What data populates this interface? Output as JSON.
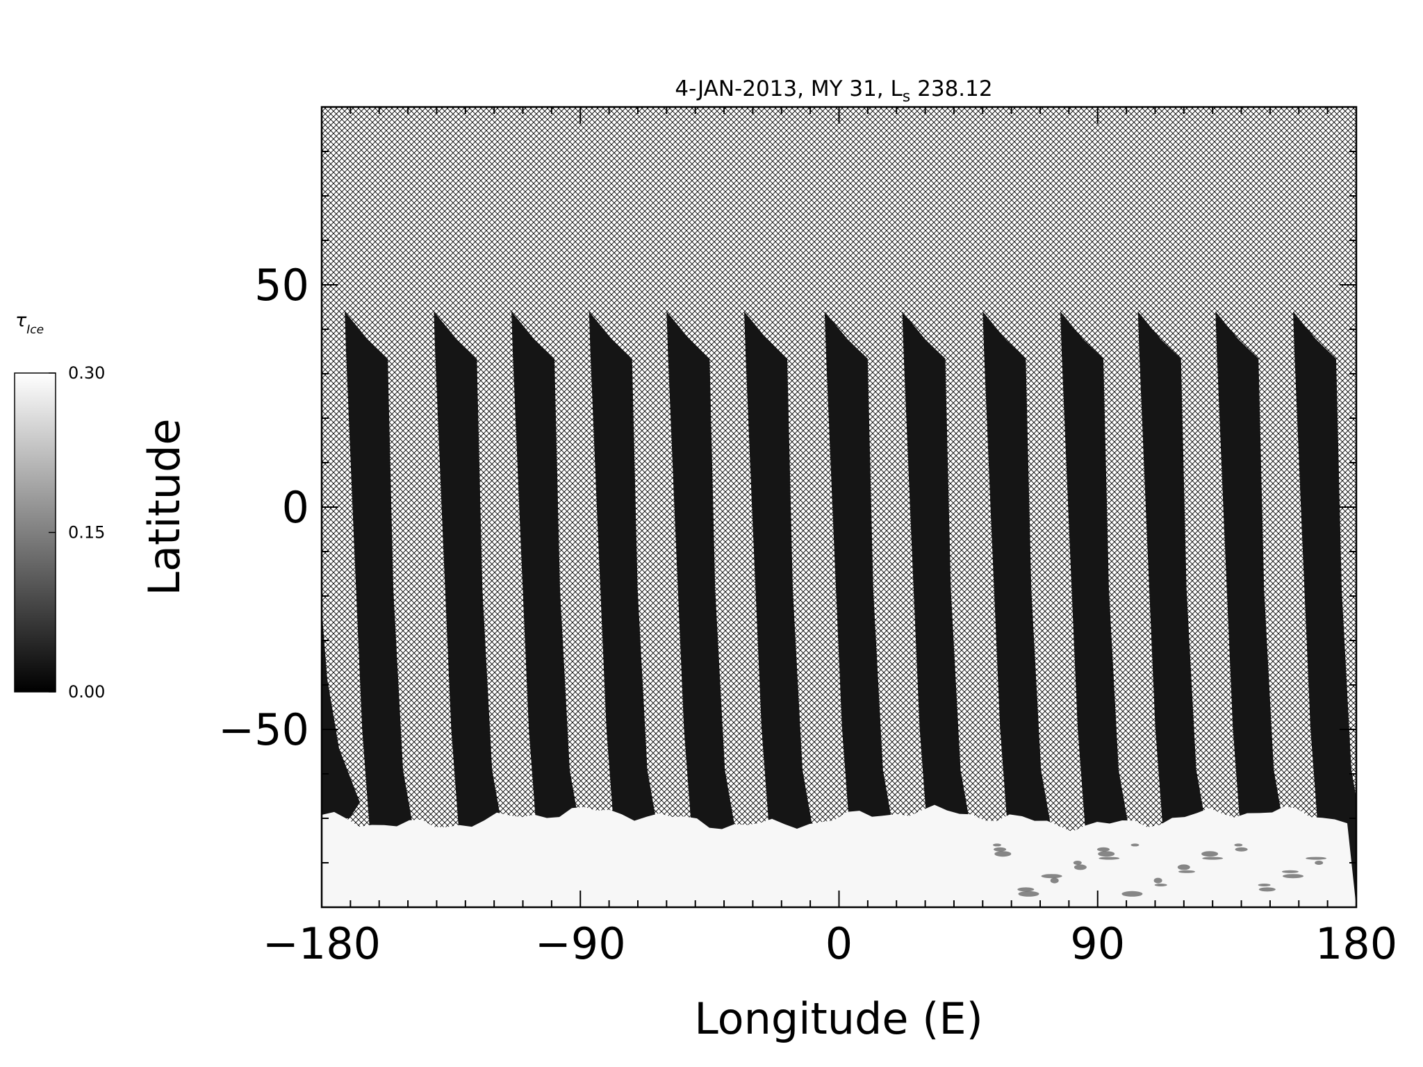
{
  "chart_data": {
    "type": "heatmap",
    "title": "4-JAN-2013, MY 31,  L",
    "title_subscript": "s",
    "title_suffix": " 238.12",
    "xlabel": "Longitude (E)",
    "ylabel": "Latitude",
    "xlim": [
      -180,
      180
    ],
    "ylim": [
      -90,
      90
    ],
    "xticks": [
      -180,
      -90,
      0,
      90,
      180
    ],
    "xtick_labels": [
      "−180",
      "−90",
      "0",
      "90",
      "180"
    ],
    "yticks": [
      -50,
      0,
      50
    ],
    "ytick_labels": [
      "−50",
      "0",
      "50"
    ],
    "colorbar": {
      "label": "τ",
      "label_subscript": "Ice",
      "range": [
        0.0,
        0.3
      ],
      "ticks": [
        0.0,
        0.15,
        0.3
      ],
      "tick_labels": [
        "0.00",
        "0.15",
        "0.30"
      ],
      "colormap": "grayscale black-to-white"
    },
    "missing_data_pattern": "cross-hatch",
    "swaths": [
      {
        "lon_start": -172,
        "lat_top": 44
      },
      {
        "lon_start": -141,
        "lat_top": 44
      },
      {
        "lon_start": -114,
        "lat_top": 44
      },
      {
        "lon_start": -87,
        "lat_top": 44
      },
      {
        "lon_start": -60,
        "lat_top": 44
      },
      {
        "lon_start": -33,
        "lat_top": 44
      },
      {
        "lon_start": -5,
        "lat_top": 44
      },
      {
        "lon_start": 22,
        "lat_top": 44
      },
      {
        "lon_start": 50,
        "lat_top": 44
      },
      {
        "lon_start": 77,
        "lat_top": 44
      },
      {
        "lon_start": 104,
        "lat_top": 44
      },
      {
        "lon_start": 131,
        "lat_top": 44
      },
      {
        "lon_start": 158,
        "lat_top": 44
      }
    ],
    "southern_bright_region_lat_top": -70
  },
  "colors": {
    "swath": "#151515",
    "hatch": "#000000",
    "bright_region": "#f7f7f7",
    "background": "#ffffff"
  }
}
